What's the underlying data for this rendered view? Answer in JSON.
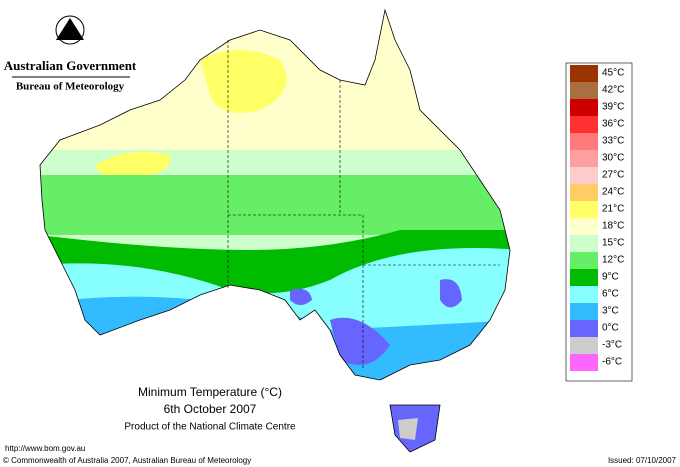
{
  "header": {
    "government": "Australian Government",
    "bureau": "Bureau of Meteorology"
  },
  "map": {
    "title": "Minimum Temperature (°C)",
    "date": "6th October 2007",
    "product": "Product of the National Climate Centre"
  },
  "legend": {
    "items": [
      {
        "label": "45°C",
        "color": "#993300"
      },
      {
        "label": "42°C",
        "color": "#a87040"
      },
      {
        "label": "39°C",
        "color": "#cc0000"
      },
      {
        "label": "36°C",
        "color": "#ff3030"
      },
      {
        "label": "33°C",
        "color": "#ff7a7a"
      },
      {
        "label": "30°C",
        "color": "#ffa0a0"
      },
      {
        "label": "27°C",
        "color": "#ffcccc"
      },
      {
        "label": "24°C",
        "color": "#ffcc66"
      },
      {
        "label": "21°C",
        "color": "#ffff66"
      },
      {
        "label": "18°C",
        "color": "#ffffcc"
      },
      {
        "label": "15°C",
        "color": "#ccffcc"
      },
      {
        "label": "12°C",
        "color": "#66ee66"
      },
      {
        "label": "9°C",
        "color": "#00bb00"
      },
      {
        "label": "6°C",
        "color": "#88ffff"
      },
      {
        "label": "3°C",
        "color": "#33bbff"
      },
      {
        "label": "0°C",
        "color": "#6666ff"
      },
      {
        "label": "-3°C",
        "color": "#cccccc"
      },
      {
        "label": "-6°C",
        "color": "#ff66ff"
      }
    ]
  },
  "footer": {
    "url": "http://www.bom.gov.au",
    "copyright": "© Commonwealth of Australia 2007, Australian Bureau of Meteorology",
    "issued": "Issued: 07/10/2007"
  }
}
